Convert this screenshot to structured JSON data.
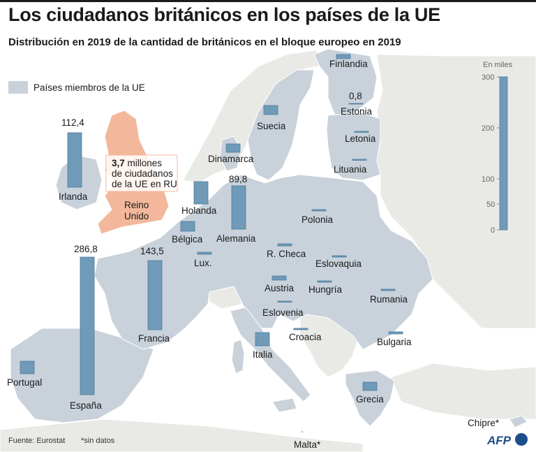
{
  "title": "Los ciudadanos británicos en los países de la UE",
  "subtitle": "Distribución en 2019 de la cantidad de británicos en el bloque europeo en 2019",
  "legend": {
    "label": "Países miembros de la UE"
  },
  "uk_note": {
    "bold": "3,7",
    "line1_rest": " millones",
    "line2": "de ciudadanos",
    "line3": "de la UE en RU",
    "country_line1": "Reino",
    "country_line2": "Unido"
  },
  "scale": {
    "unit": "En miles",
    "ticks": [
      "300",
      "200",
      "100",
      "50",
      "0"
    ]
  },
  "countries": {
    "irlanda": {
      "label": "Irlanda",
      "value": "112,4"
    },
    "alemania": {
      "label": "Alemania",
      "value": "89,8"
    },
    "espana": {
      "label": "España",
      "value": "286,8"
    },
    "francia": {
      "label": "Francia",
      "value": "143,5"
    },
    "estonia": {
      "label": "Estonia",
      "value": "0,8"
    },
    "finlandia": {
      "label": "Finlandia"
    },
    "suecia": {
      "label": "Suecia"
    },
    "letonia": {
      "label": "Letonia"
    },
    "lituania": {
      "label": "Lituania"
    },
    "dinamarca": {
      "label": "Dinamarca"
    },
    "holanda": {
      "label": "Holanda"
    },
    "belgica": {
      "label": "Bélgica"
    },
    "lux": {
      "label": "Lux."
    },
    "polonia": {
      "label": "Polonia"
    },
    "rcheca": {
      "label": "R. Checa"
    },
    "eslovaquia": {
      "label": "Eslovaquia"
    },
    "austria": {
      "label": "Austria"
    },
    "hungria": {
      "label": "Hungría"
    },
    "rumania": {
      "label": "Rumania"
    },
    "eslovenia": {
      "label": "Eslovenia"
    },
    "croacia": {
      "label": "Croacia"
    },
    "bulgaria": {
      "label": "Bulgaria"
    },
    "italia": {
      "label": "Italia"
    },
    "portugal": {
      "label": "Portugal"
    },
    "grecia": {
      "label": "Grecia"
    },
    "chipre": {
      "label": "Chipre*"
    },
    "malta": {
      "label": "Malta*"
    }
  },
  "footer": {
    "source": "Fuente: Eurostat",
    "note": "*sin datos",
    "logo": "AFP"
  },
  "colors": {
    "sea": "#ffffff",
    "eu": "#c9d2db",
    "noneu": "#e9e9e6",
    "uk": "#f3b89c",
    "bar": "#6f9ab8",
    "bar_edge": "#4f7d9c"
  }
}
